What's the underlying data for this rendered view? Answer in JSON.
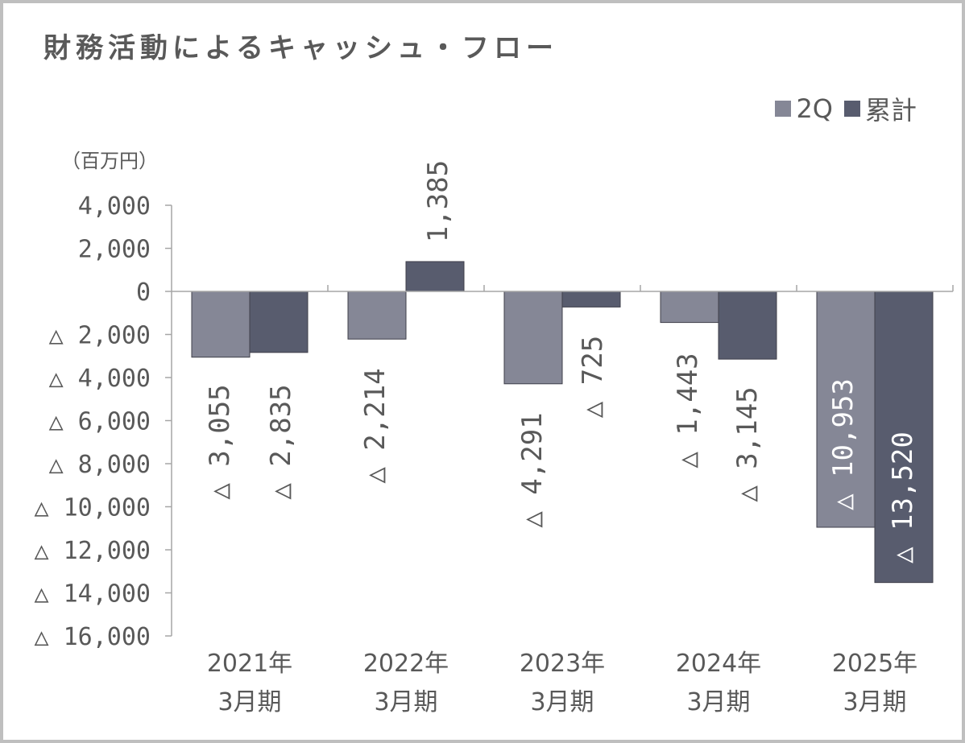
{
  "chart_data": {
    "type": "bar",
    "title": "財務活動によるキャッシュ・フロー",
    "unit": "（百万円）",
    "categories": [
      [
        "2021年",
        "3月期"
      ],
      [
        "2022年",
        "3月期"
      ],
      [
        "2023年",
        "3月期"
      ],
      [
        "2024年",
        "3月期"
      ],
      [
        "2025年",
        "3月期"
      ]
    ],
    "series": [
      {
        "name": "2Q",
        "color": "#858796",
        "values": [
          -3055,
          -2214,
          -4291,
          -1443,
          -10953
        ],
        "labels": [
          "△ 3,055",
          "△ 2,214",
          "△ 4,291",
          "△ 1,443",
          "△ 10,953"
        ]
      },
      {
        "name": "累計",
        "color": "#585c6e",
        "values": [
          -2835,
          1385,
          -725,
          -3145,
          -13520
        ],
        "labels": [
          "△ 2,835",
          "1,385",
          "△ 725",
          "△ 3,145",
          "△ 13,520"
        ]
      }
    ],
    "ylim": [
      -16000,
      4000
    ],
    "yticks": [
      4000,
      2000,
      0,
      -2000,
      -4000,
      -6000,
      -8000,
      -10000,
      -12000,
      -14000,
      -16000
    ],
    "ytick_labels": [
      "4,000",
      "2,000",
      "0",
      "△ 2,000",
      "△ 4,000",
      "△ 6,000",
      "△ 8,000",
      "△ 10,000",
      "△ 12,000",
      "△ 14,000",
      "△ 16,000"
    ],
    "grid": false,
    "legend_position": "top-right"
  }
}
